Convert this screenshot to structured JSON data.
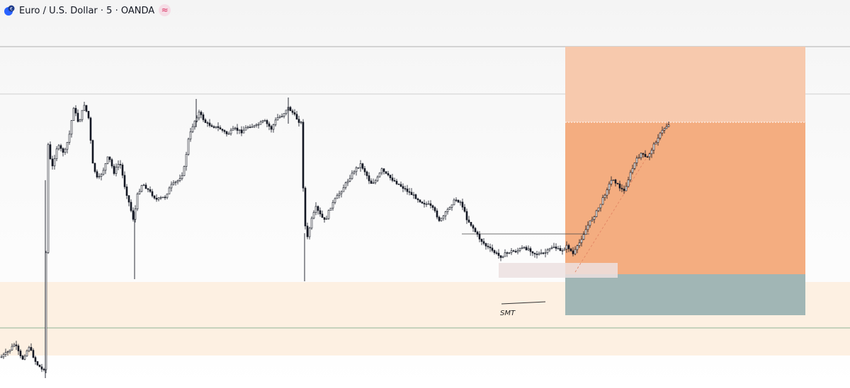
{
  "header": {
    "title": "Euro / U.S. Dollar · 5 · OANDA",
    "status_badge": "≈"
  },
  "colors": {
    "candle": "#131722",
    "zone_fill": "#fdf0e2",
    "zone_line": "#2e7d52",
    "target_fill": "#f4ad80",
    "extended_target_fill": "#f7c9ad",
    "stop_fill": "#a1b6b5",
    "range_fill": "#ece0e0",
    "level_line": "#b8b8b8",
    "drawing_line": "#555555",
    "badge": "#e0577f"
  },
  "annotation": {
    "smt_label": "SMT"
  },
  "chart_data": {
    "type": "candlestick",
    "symbol": "Euro / U.S. Dollar",
    "interval": "5",
    "exchange": "OANDA",
    "grid": false,
    "series_path": [
      [
        0,
        0.05
      ],
      [
        10,
        0.07
      ],
      [
        20,
        0.1
      ],
      [
        30,
        0.04
      ],
      [
        40,
        0.09
      ],
      [
        50,
        0.03
      ],
      [
        60,
        0.0
      ],
      [
        62,
        0.02
      ],
      [
        66,
        0.85
      ],
      [
        72,
        0.74
      ],
      [
        80,
        0.83
      ],
      [
        90,
        0.8
      ],
      [
        97,
        0.87
      ],
      [
        103,
        0.97
      ],
      [
        110,
        0.91
      ],
      [
        118,
        0.98
      ],
      [
        124,
        0.93
      ],
      [
        130,
        0.76
      ],
      [
        137,
        0.7
      ],
      [
        145,
        0.74
      ],
      [
        152,
        0.79
      ],
      [
        160,
        0.73
      ],
      [
        168,
        0.77
      ],
      [
        175,
        0.68
      ],
      [
        182,
        0.61
      ],
      [
        188,
        0.55
      ],
      [
        192,
        0.64
      ],
      [
        200,
        0.69
      ],
      [
        210,
        0.66
      ],
      [
        220,
        0.63
      ],
      [
        232,
        0.64
      ],
      [
        240,
        0.68
      ],
      [
        250,
        0.7
      ],
      [
        258,
        0.73
      ],
      [
        265,
        0.85
      ],
      [
        272,
        0.91
      ],
      [
        280,
        0.95
      ],
      [
        290,
        0.91
      ],
      [
        300,
        0.9
      ],
      [
        310,
        0.89
      ],
      [
        320,
        0.87
      ],
      [
        330,
        0.89
      ],
      [
        340,
        0.88
      ],
      [
        350,
        0.9
      ],
      [
        360,
        0.9
      ],
      [
        372,
        0.92
      ],
      [
        382,
        0.89
      ],
      [
        390,
        0.93
      ],
      [
        398,
        0.94
      ],
      [
        405,
        0.97
      ],
      [
        412,
        0.95
      ],
      [
        420,
        0.92
      ],
      [
        425,
        0.91
      ],
      [
        428,
        0.56
      ],
      [
        433,
        0.49
      ],
      [
        438,
        0.55
      ],
      [
        445,
        0.6
      ],
      [
        452,
        0.57
      ],
      [
        458,
        0.55
      ],
      [
        465,
        0.6
      ],
      [
        472,
        0.63
      ],
      [
        480,
        0.66
      ],
      [
        490,
        0.7
      ],
      [
        500,
        0.74
      ],
      [
        508,
        0.76
      ],
      [
        515,
        0.73
      ],
      [
        522,
        0.69
      ],
      [
        530,
        0.7
      ],
      [
        538,
        0.74
      ],
      [
        545,
        0.72
      ],
      [
        555,
        0.7
      ],
      [
        565,
        0.68
      ],
      [
        575,
        0.66
      ],
      [
        585,
        0.64
      ],
      [
        595,
        0.62
      ],
      [
        605,
        0.61
      ],
      [
        612,
        0.59
      ],
      [
        620,
        0.55
      ],
      [
        628,
        0.58
      ],
      [
        635,
        0.61
      ],
      [
        642,
        0.63
      ],
      [
        650,
        0.62
      ],
      [
        658,
        0.56
      ],
      [
        666,
        0.53
      ],
      [
        675,
        0.49
      ],
      [
        685,
        0.46
      ],
      [
        695,
        0.44
      ],
      [
        705,
        0.42
      ],
      [
        712,
        0.43
      ],
      [
        720,
        0.44
      ],
      [
        728,
        0.44
      ],
      [
        735,
        0.45
      ],
      [
        745,
        0.45
      ],
      [
        755,
        0.43
      ],
      [
        765,
        0.43
      ],
      [
        772,
        0.44
      ],
      [
        780,
        0.46
      ],
      [
        790,
        0.44
      ],
      [
        800,
        0.46
      ],
      [
        808,
        0.43
      ],
      [
        815,
        0.46
      ],
      [
        822,
        0.5
      ],
      [
        830,
        0.54
      ],
      [
        840,
        0.58
      ],
      [
        848,
        0.62
      ],
      [
        856,
        0.67
      ],
      [
        864,
        0.71
      ],
      [
        872,
        0.68
      ],
      [
        880,
        0.66
      ],
      [
        888,
        0.72
      ],
      [
        896,
        0.77
      ],
      [
        904,
        0.8
      ],
      [
        912,
        0.78
      ],
      [
        920,
        0.82
      ],
      [
        928,
        0.86
      ],
      [
        936,
        0.89
      ],
      [
        944,
        0.91
      ]
    ],
    "annotations": [
      "SMT"
    ]
  }
}
